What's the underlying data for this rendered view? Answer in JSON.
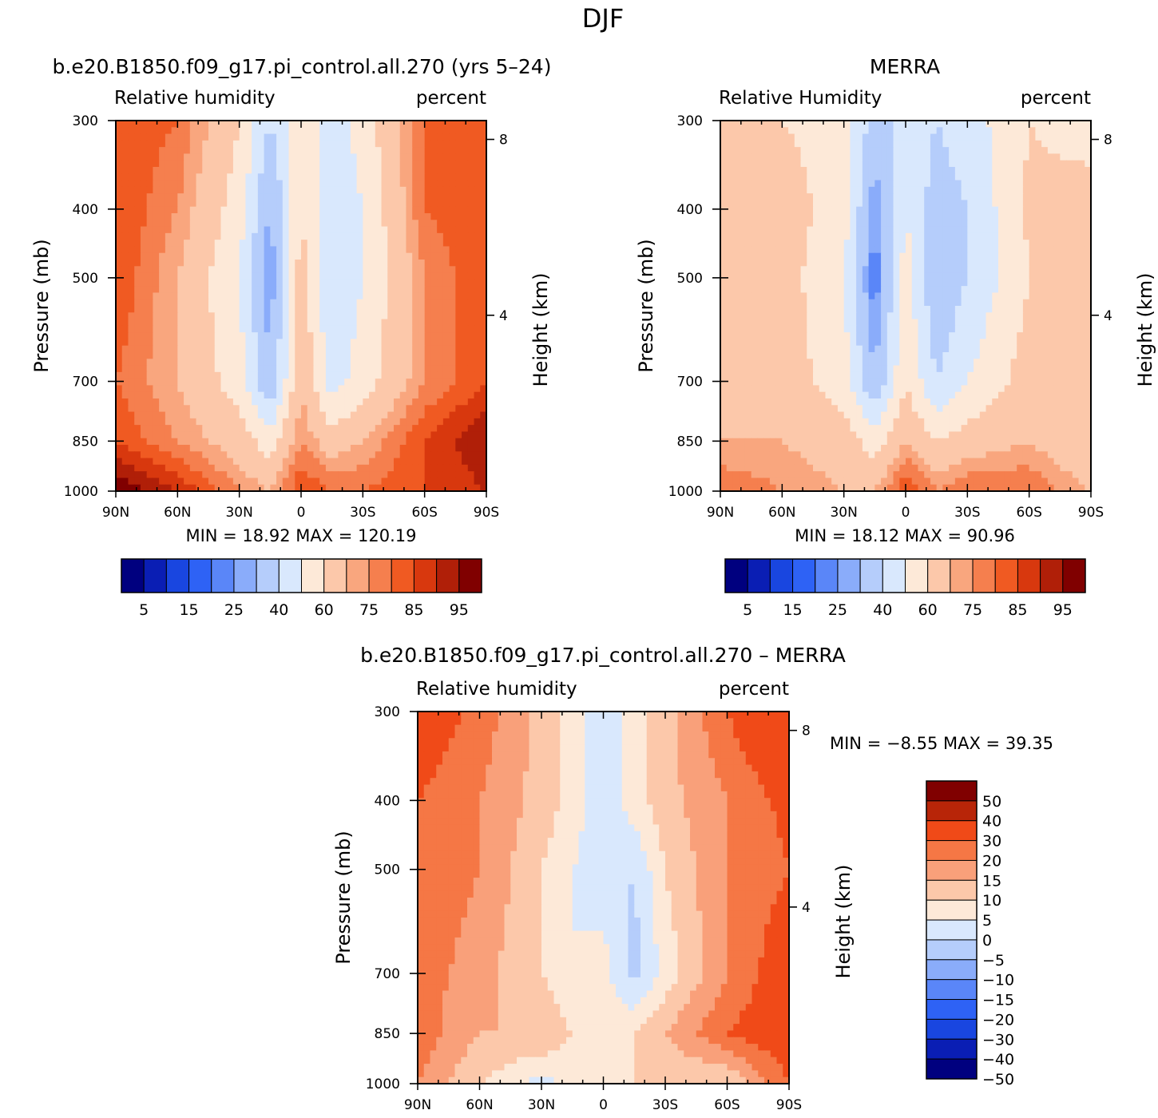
{
  "figure": {
    "season": "DJF"
  },
  "panels": [
    {
      "id": "model",
      "title": "b.e20.B1850.f09_g17.pi_control.all.270 (yrs 5–24)",
      "left_label": "Relative humidity",
      "right_label": "percent",
      "min_text": "MIN =   18.92   MAX =  120.19"
    },
    {
      "id": "obs",
      "title": "MERRA",
      "left_label": "Relative Humidity",
      "right_label": "percent",
      "min_text": "MIN =   18.12   MAX =   90.96"
    },
    {
      "id": "diff",
      "title": "b.e20.B1850.f09_g17.pi_control.all.270 – MERRA",
      "left_label": "Relative humidity",
      "right_label": "percent",
      "min_text": "MIN =   −8.55   MAX =   39.35"
    }
  ],
  "axes": {
    "ylabel": "Pressure (mb)",
    "y2label": "Height (km)",
    "pressure_ticks": [
      "300",
      "400",
      "500",
      "700",
      "850",
      "1000"
    ],
    "pressure_values": [
      300,
      400,
      500,
      700,
      850,
      1000
    ],
    "height_ticks": [
      "8",
      "4"
    ],
    "height_values": [
      8,
      4
    ],
    "lat_ticks": [
      "90N",
      "60N",
      "30N",
      "0",
      "30S",
      "60S",
      "90S"
    ],
    "lat_values": [
      90,
      60,
      30,
      0,
      -30,
      -60,
      -90
    ]
  },
  "colorbars": {
    "abs": {
      "labels": [
        "5",
        "15",
        "25",
        "40",
        "60",
        "75",
        "85",
        "95"
      ],
      "colors": [
        "#00007f",
        "#0a1eb4",
        "#1946e0",
        "#2e62f5",
        "#5a86f8",
        "#8aacfa",
        "#b5cdfb",
        "#d9e8fd",
        "#fde9d8",
        "#fcc8aa",
        "#f9a67e",
        "#f57f4e",
        "#f05a22",
        "#d8380e",
        "#b01f08",
        "#800000"
      ]
    },
    "diff": {
      "labels": [
        "50",
        "40",
        "30",
        "20",
        "15",
        "10",
        "5",
        "0",
        "−5",
        "−10",
        "−15",
        "−20",
        "−30",
        "−40",
        "−50"
      ],
      "colors": [
        "#800000",
        "#b82508",
        "#f04a18",
        "#f57745",
        "#f9a07a",
        "#fcc8aa",
        "#fde9d8",
        "#d9e8fd",
        "#b5cdfb",
        "#8aacfa",
        "#5a86f8",
        "#2e62f5",
        "#1946e0",
        "#0a1eb4",
        "#00007f"
      ]
    }
  },
  "chart_data": [
    {
      "type": "heatmap",
      "title": "b.e20.B1850.f09_g17.pi_control.all.270 (yrs 5–24)",
      "variable": "Relative humidity",
      "units": "percent",
      "xlabel": "",
      "ylabel": "Pressure (mb)",
      "y2label": "Height (km)",
      "xlim": [
        90,
        -90
      ],
      "ylim": [
        1000,
        300
      ],
      "min": 18.92,
      "max": 120.19,
      "x": [
        90,
        60,
        30,
        15,
        0,
        -15,
        -30,
        -60,
        -90
      ],
      "y": [
        300,
        400,
        500,
        700,
        850,
        1000
      ],
      "z": [
        [
          85,
          80,
          60,
          40,
          55,
          45,
          55,
          80,
          85
        ],
        [
          85,
          75,
          55,
          28,
          60,
          40,
          50,
          80,
          85
        ],
        [
          85,
          70,
          50,
          25,
          65,
          40,
          50,
          75,
          85
        ],
        [
          80,
          70,
          55,
          30,
          70,
          45,
          55,
          75,
          85
        ],
        [
          85,
          75,
          65,
          55,
          75,
          65,
          70,
          85,
          95
        ],
        [
          100,
          90,
          75,
          70,
          85,
          80,
          80,
          85,
          90
        ]
      ]
    },
    {
      "type": "heatmap",
      "title": "MERRA",
      "variable": "Relative Humidity",
      "units": "percent",
      "xlabel": "",
      "ylabel": "Pressure (mb)",
      "y2label": "Height (km)",
      "xlim": [
        90,
        -90
      ],
      "ylim": [
        1000,
        300
      ],
      "min": 18.12,
      "max": 90.96,
      "x": [
        90,
        60,
        30,
        15,
        0,
        -15,
        -30,
        -60,
        -90
      ],
      "y": [
        300,
        400,
        500,
        700,
        850,
        1000
      ],
      "z": [
        [
          60,
          60,
          55,
          35,
          45,
          40,
          45,
          60,
          55
        ],
        [
          65,
          65,
          55,
          25,
          50,
          35,
          40,
          62,
          65
        ],
        [
          65,
          65,
          50,
          20,
          55,
          30,
          40,
          60,
          65
        ],
        [
          65,
          65,
          55,
          30,
          60,
          40,
          50,
          65,
          65
        ],
        [
          70,
          70,
          65,
          55,
          70,
          60,
          65,
          70,
          60
        ],
        [
          80,
          75,
          70,
          70,
          85,
          75,
          80,
          80,
          70
        ]
      ]
    },
    {
      "type": "heatmap",
      "title": "b.e20.B1850.f09_g17.pi_control.all.270 – MERRA",
      "variable": "Relative humidity",
      "units": "percent",
      "xlabel": "",
      "ylabel": "Pressure (mb)",
      "y2label": "Height (km)",
      "xlim": [
        90,
        -90
      ],
      "ylim": [
        1000,
        300
      ],
      "min": -8.55,
      "max": 39.35,
      "x": [
        90,
        60,
        30,
        15,
        0,
        -15,
        -30,
        -60,
        -90
      ],
      "y": [
        300,
        400,
        500,
        700,
        850,
        1000
      ],
      "z": [
        [
          25,
          18,
          8,
          2,
          -3,
          2,
          8,
          20,
          30
        ],
        [
          20,
          15,
          8,
          3,
          -5,
          3,
          8,
          15,
          22
        ],
        [
          20,
          15,
          5,
          0,
          -3,
          -5,
          5,
          15,
          20
        ],
        [
          18,
          12,
          5,
          0,
          2,
          -7,
          2,
          15,
          25
        ],
        [
          18,
          10,
          10,
          5,
          2,
          5,
          10,
          20,
          25
        ],
        [
          15,
          5,
          -2,
          2,
          2,
          5,
          5,
          5,
          20
        ]
      ]
    }
  ]
}
